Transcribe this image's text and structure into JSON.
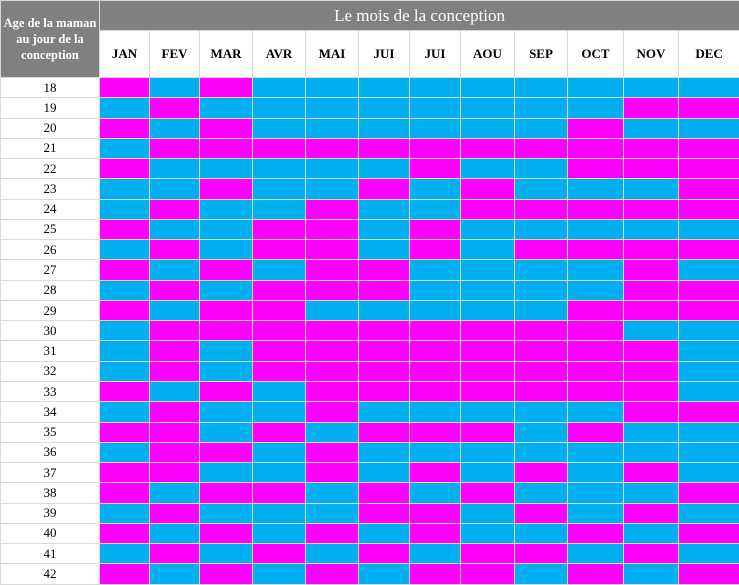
{
  "colors": {
    "boy": "#00b0f0",
    "girl": "#ff00ff",
    "header": "#808080"
  },
  "header": {
    "row_label": "Age de la maman au jour de la conception",
    "title": "Le mois de la conception"
  },
  "months": [
    "JAN",
    "FEV",
    "MAR",
    "AVR",
    "MAI",
    "JUI",
    "JUI",
    "AOU",
    "SEP",
    "OCT",
    "NOV",
    "DEC"
  ],
  "rows": [
    {
      "age": "18",
      "cells": "FGFGGGGGGGGG"
    },
    {
      "age": "19",
      "cells": "GFGGGGGGGGFF"
    },
    {
      "age": "20",
      "cells": "FGFGGGGGGFGG"
    },
    {
      "age": "21",
      "cells": "GFFFFFFFFFFF"
    },
    {
      "age": "22",
      "cells": "FGGGGGFGGFFF"
    },
    {
      "age": "23",
      "cells": "GGFGGFGFGGGF"
    },
    {
      "age": "24",
      "cells": "GFGGFGGFFFFF"
    },
    {
      "age": "25",
      "cells": "FGGFFGFGGGGG"
    },
    {
      "age": "26",
      "cells": "GFGFFGFGFFFF"
    },
    {
      "age": "27",
      "cells": "FGFGFFGGGGFG"
    },
    {
      "age": "28",
      "cells": "GFGFFFGGGGFF"
    },
    {
      "age": "29",
      "cells": "FGFFGGGGGFFF"
    },
    {
      "age": "30",
      "cells": "GFFFFFFFFFGG"
    },
    {
      "age": "31",
      "cells": "GFGFFFFFFFFG"
    },
    {
      "age": "32",
      "cells": "GFGFFFFFFFFG"
    },
    {
      "age": "33",
      "cells": "FGFGFFFFFFFG"
    },
    {
      "age": "34",
      "cells": "GFGGFGGGGGFF"
    },
    {
      "age": "35",
      "cells": "FFGFGFFFGFGG"
    },
    {
      "age": "36",
      "cells": "GFFGFGGGGGGG"
    },
    {
      "age": "37",
      "cells": "FFGGFGFGFGFG"
    },
    {
      "age": "38",
      "cells": "FGFFGFGFGGGF"
    },
    {
      "age": "39",
      "cells": "GFGGGFFGFGFG"
    },
    {
      "age": "40",
      "cells": "FGFGFGFGGFGF"
    },
    {
      "age": "41",
      "cells": "GFGFGFGFFGFG"
    },
    {
      "age": "42",
      "cells": "FGFGFGFFGFGF"
    }
  ]
}
